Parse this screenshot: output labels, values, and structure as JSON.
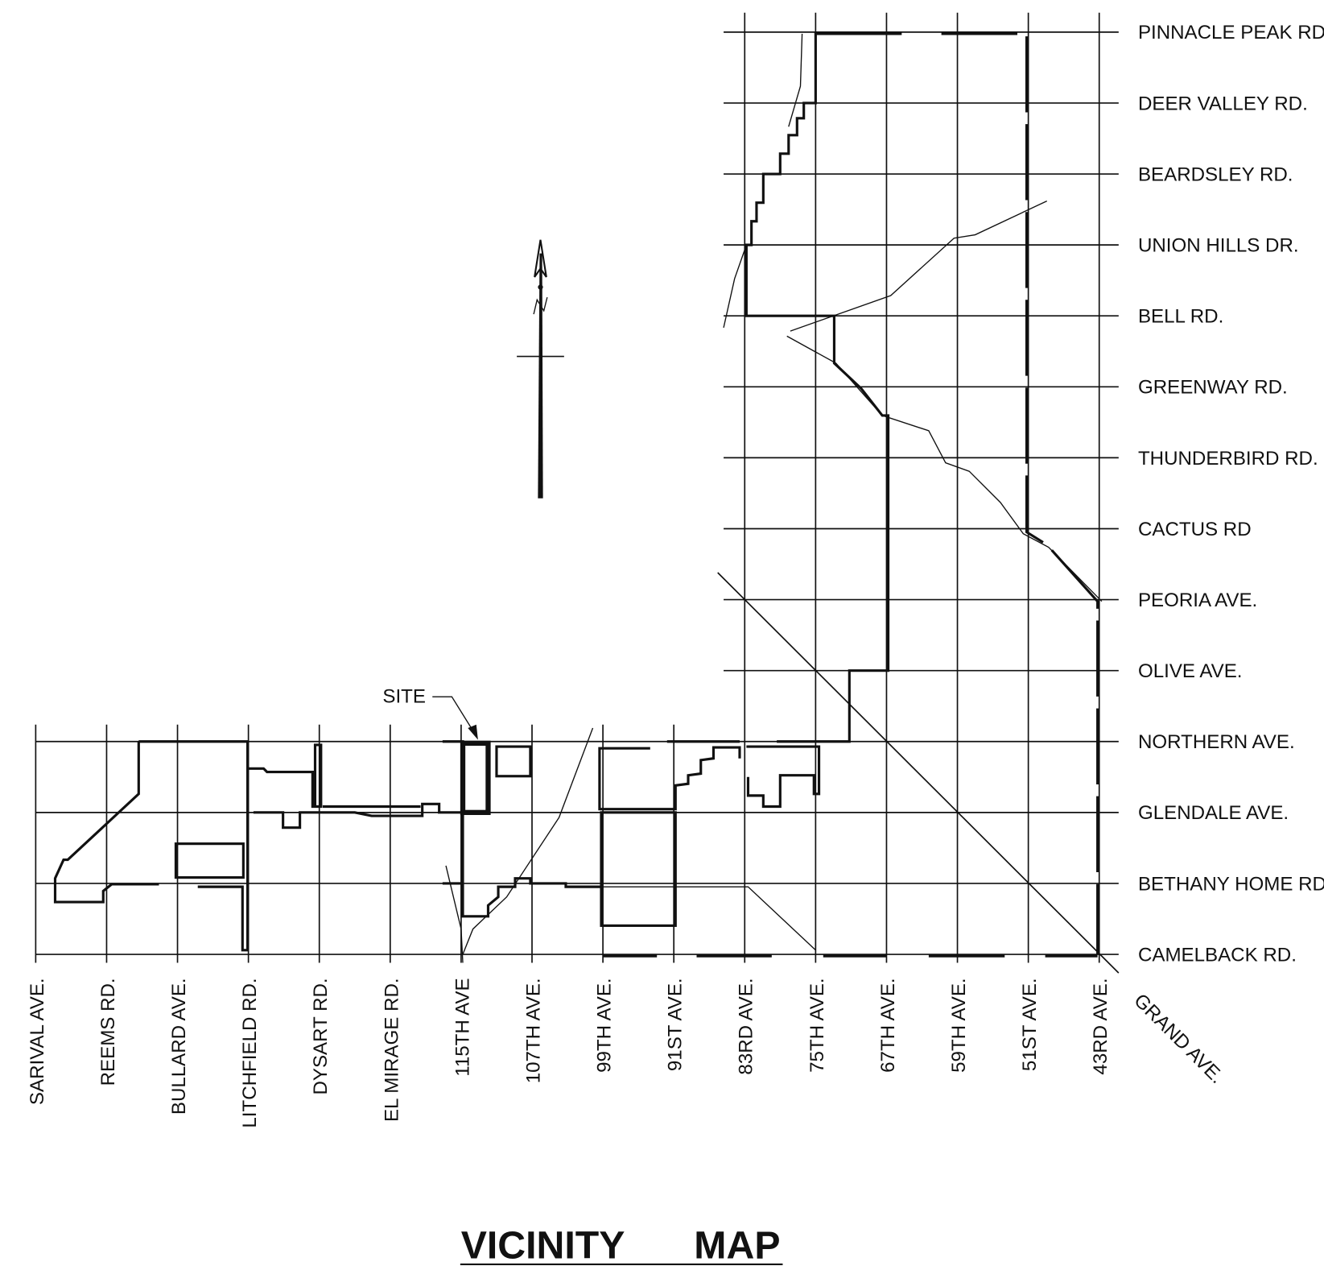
{
  "title": "VICINITY MAP",
  "site_label": "SITE",
  "diagonal_road": "GRAND AVE.",
  "east_west_roads": [
    "PINNACLE PEAK RD",
    "DEER VALLEY RD.",
    "BEARDSLEY RD.",
    "UNION HILLS DR.",
    "BELL RD.",
    "GREENWAY RD.",
    "THUNDERBIRD RD.",
    "CACTUS RD",
    "PEORIA AVE.",
    "OLIVE AVE.",
    "NORTHERN AVE.",
    "GLENDALE AVE.",
    "BETHANY HOME RD",
    "CAMELBACK RD."
  ],
  "north_south_roads": [
    "SARIVAL AVE.",
    "REEMS RD.",
    "BULLARD AVE.",
    "LITCHFIELD RD.",
    "DYSART RD.",
    "EL MIRAGE RD.",
    "115TH AVE",
    "107TH AVE.",
    "99TH AVE.",
    "91ST AVE.",
    "83RD AVE.",
    "75TH AVE.",
    "67TH AVE.",
    "59TH AVE.",
    "51ST AVE.",
    "43RD AVE."
  ]
}
